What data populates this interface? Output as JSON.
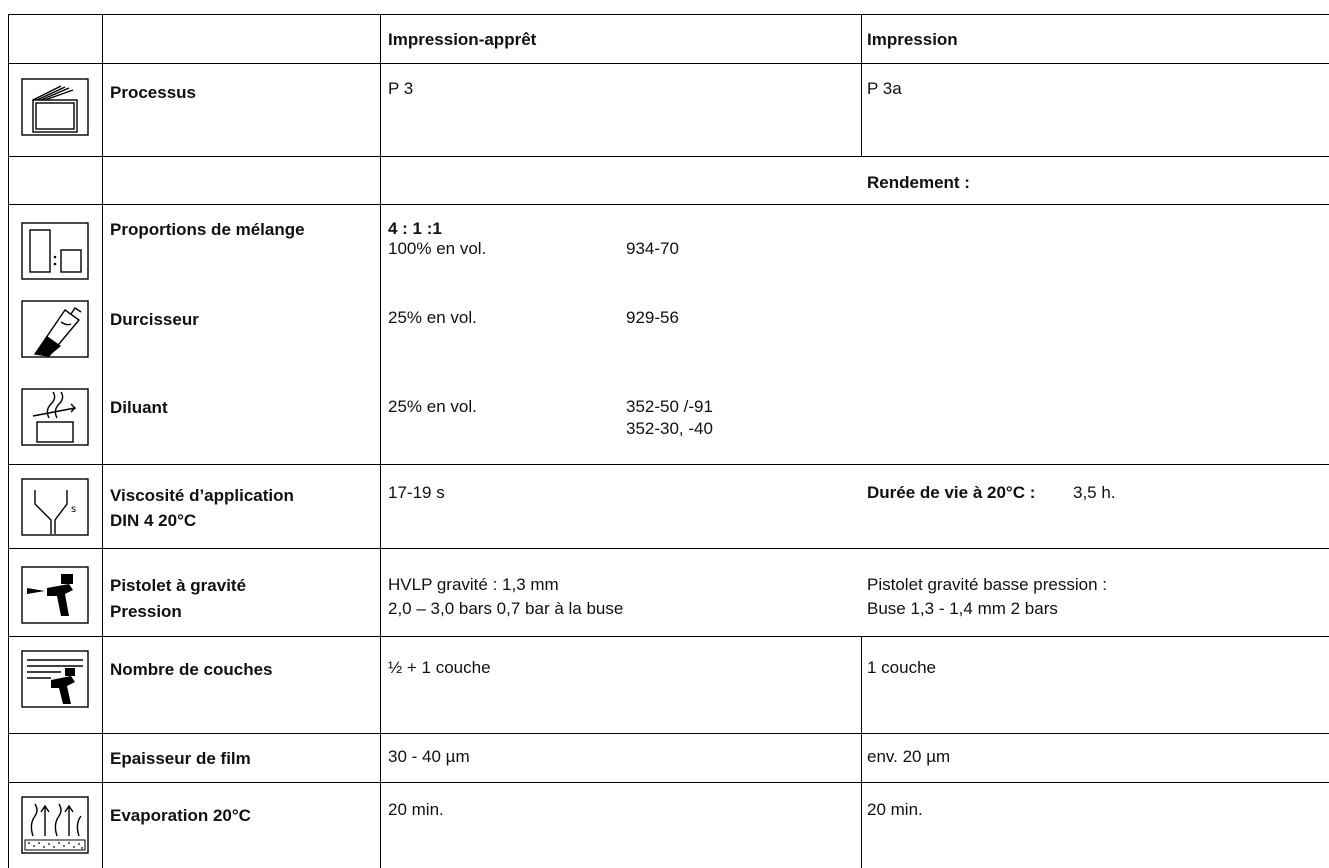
{
  "header": {
    "col1": "Impression-apprêt",
    "col2": "Impression"
  },
  "rows": {
    "processus": {
      "label": "Processus",
      "icon": "processus-icon",
      "val1": "P 3",
      "val2": "P 3a"
    },
    "rendement": {
      "val2": "Rendement :"
    },
    "proportions": {
      "label": "Proportions de mélange",
      "icon": "mixing-ratio-icon",
      "ratio": "4 : 1 :1",
      "vol": "100% en vol.",
      "ref": "934-70"
    },
    "durcisseur": {
      "label": "Durcisseur",
      "icon": "hardener-icon",
      "vol": "25% en vol.",
      "ref": "929-56"
    },
    "diluant": {
      "label": "Diluant",
      "icon": "thinner-icon",
      "vol": "25% en vol.",
      "ref1": "352-50 /-91",
      "ref2": "352-30, -40"
    },
    "viscosite": {
      "label1": "Viscosité d’application",
      "label2": "DIN 4 20°C",
      "icon": "viscosity-cup-icon",
      "val1": "17-19 s",
      "potlife_label": "Durée de vie à 20°C :",
      "potlife_value": "3,5 h."
    },
    "pistolet": {
      "label1": "Pistolet à gravité",
      "label2": "Pression",
      "icon": "spray-gun-icon",
      "val1a": "HVLP gravité : 1,3 mm",
      "val1b": "2,0 – 3,0 bars 0,7 bar à la buse",
      "val2a": "Pistolet gravité basse pression :",
      "val2b": "Buse 1,3 - 1,4 mm 2 bars"
    },
    "couches": {
      "label": "Nombre de couches",
      "icon": "coats-icon",
      "val1": "½ + 1 couche",
      "val2": "1 couche"
    },
    "epaisseur": {
      "label": "Epaisseur de film",
      "val1": "30 - 40 µm",
      "val2": "env. 20 µm"
    },
    "evaporation": {
      "label": "Evaporation 20°C",
      "icon": "evaporation-icon",
      "val1": "20 min.",
      "val2": "20 min."
    }
  }
}
